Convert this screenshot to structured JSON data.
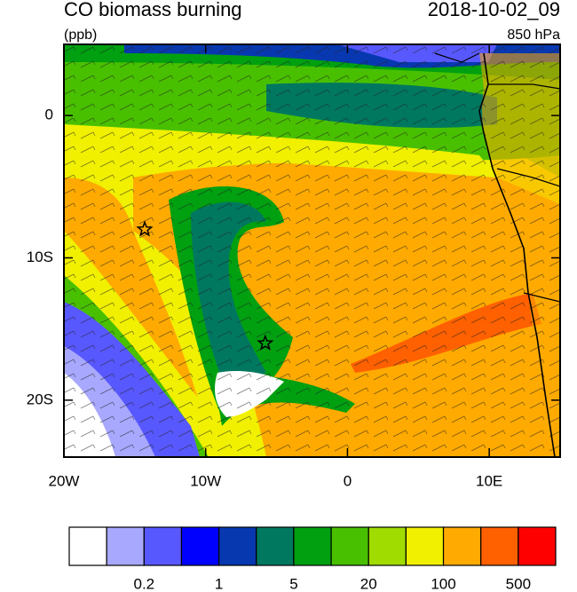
{
  "map": {
    "title": "CO biomass burning",
    "time": "2018-10-02_09",
    "units": "(ppb)",
    "level": "850 hPa",
    "lonlim": [
      -20,
      15
    ],
    "latlim": [
      -24,
      5
    ],
    "lonticks": [
      {
        "value": -20,
        "label": "20W"
      },
      {
        "value": -10,
        "label": "10W"
      },
      {
        "value": 0,
        "label": "0"
      },
      {
        "value": 10,
        "label": "10E"
      }
    ],
    "latticks": [
      {
        "value": 0,
        "label": "0"
      },
      {
        "value": -10,
        "label": "10S"
      },
      {
        "value": -20,
        "label": "20S"
      }
    ],
    "markers": [
      {
        "lon": -14.3,
        "lat": -8
      },
      {
        "lon": -5.8,
        "lat": -16
      }
    ],
    "colorbar": {
      "colors": [
        "#ffffff",
        "#a8a8ff",
        "#5858ff",
        "#0000ff",
        "#0838b0",
        "#007860",
        "#00a010",
        "#48c000",
        "#a0dc00",
        "#f0f000",
        "#ffaa00",
        "#ff6000",
        "#ff0000"
      ],
      "labels": [
        0.2,
        1,
        5,
        20,
        100,
        500
      ]
    }
  }
}
